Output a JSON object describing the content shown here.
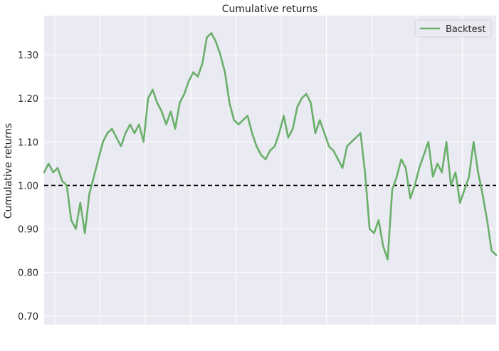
{
  "chart_data": {
    "type": "line",
    "title": "Cumulative returns",
    "xlabel": "",
    "ylabel": "Cumulative returns",
    "ylim": [
      0.68,
      1.39
    ],
    "yticks": [
      "0.70",
      "0.80",
      "0.90",
      "1.00",
      "1.10",
      "1.20",
      "1.30"
    ],
    "reference_line": {
      "y": 1.0,
      "style": "dashed",
      "color": "#000000"
    },
    "grid": true,
    "legend": {
      "position": "top-right",
      "entries": [
        "Backtest"
      ]
    },
    "colors": {
      "series": "#6aaf6a",
      "plot_bg": "#eaeaf2",
      "grid": "#ffffff"
    },
    "series": [
      {
        "name": "Backtest",
        "x": [
          0,
          2,
          4,
          6,
          8,
          10,
          12,
          14,
          16,
          18,
          20,
          22,
          24,
          26,
          28,
          30,
          32,
          34,
          36,
          38,
          40,
          42,
          44,
          46,
          48,
          50,
          52,
          54,
          56,
          58,
          60,
          62,
          64,
          66,
          68,
          70,
          72,
          74,
          76,
          78,
          80,
          82,
          84,
          86,
          88,
          90,
          92,
          94,
          96,
          98,
          100,
          102,
          104,
          106,
          108,
          110,
          112,
          114,
          116,
          118,
          120,
          122,
          124,
          126,
          128,
          130,
          132,
          134,
          136,
          138,
          140,
          142,
          144,
          146,
          148,
          150,
          152,
          154,
          156,
          158,
          160,
          162,
          164,
          166,
          168,
          170,
          172,
          174,
          176,
          178,
          180,
          182,
          184,
          186,
          188,
          190,
          192,
          194,
          196,
          198,
          200
        ],
        "y": [
          1.03,
          1.05,
          1.03,
          1.04,
          1.01,
          1.0,
          0.92,
          0.9,
          0.96,
          0.89,
          0.98,
          1.02,
          1.06,
          1.1,
          1.12,
          1.13,
          1.11,
          1.09,
          1.12,
          1.14,
          1.12,
          1.14,
          1.1,
          1.2,
          1.22,
          1.19,
          1.17,
          1.14,
          1.17,
          1.13,
          1.19,
          1.21,
          1.24,
          1.26,
          1.25,
          1.28,
          1.34,
          1.35,
          1.33,
          1.3,
          1.26,
          1.19,
          1.15,
          1.14,
          1.15,
          1.16,
          1.12,
          1.09,
          1.07,
          1.06,
          1.08,
          1.09,
          1.12,
          1.16,
          1.11,
          1.13,
          1.18,
          1.2,
          1.21,
          1.19,
          1.12,
          1.15,
          1.12,
          1.09,
          1.08,
          1.06,
          1.04,
          1.09,
          1.1,
          1.11,
          1.12,
          1.03,
          0.9,
          0.89,
          0.92,
          0.86,
          0.83,
          0.99,
          1.02,
          1.06,
          1.04,
          0.97,
          1.0,
          1.04,
          1.07,
          1.1,
          1.02,
          1.05,
          1.03,
          1.1,
          1.0,
          1.03,
          0.96,
          0.99,
          1.02,
          1.1,
          1.03,
          0.98,
          0.92,
          0.85,
          0.84
        ]
      }
    ]
  }
}
